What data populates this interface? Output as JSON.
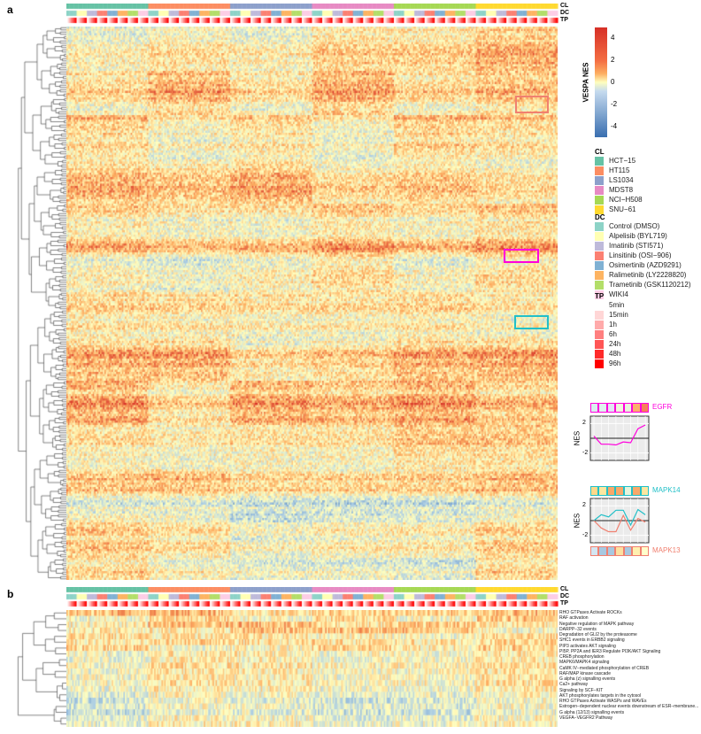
{
  "panels": {
    "a": "a",
    "b": "b"
  },
  "annotation_labels": {
    "cl": "CL",
    "dc": "DC",
    "tp": "TP"
  },
  "chart_data": {
    "type": "heatmap",
    "colorbar": {
      "title": "VESPA NES",
      "ticks": [
        4,
        2,
        0,
        -2,
        -4
      ],
      "range": [
        -5,
        5
      ],
      "colors": [
        "#3a6fb0",
        "#ffffbf",
        "#d73027"
      ]
    },
    "legends": {
      "CL": {
        "title": "CL",
        "items": [
          {
            "label": "HCT−15",
            "color": "#66c2a5"
          },
          {
            "label": "HT115",
            "color": "#fc8d62"
          },
          {
            "label": "LS1034",
            "color": "#8da0cb"
          },
          {
            "label": "MDST8",
            "color": "#e78ac3"
          },
          {
            "label": "NCI−H508",
            "color": "#a6d854"
          },
          {
            "label": "SNU−61",
            "color": "#ffd92f"
          }
        ]
      },
      "DC": {
        "title": "DC",
        "items": [
          {
            "label": "Control (DMSO)",
            "color": "#8dd3c7"
          },
          {
            "label": "Alpelisib (BYL719)",
            "color": "#ffffb3"
          },
          {
            "label": "Imatinib (STI571)",
            "color": "#bebada"
          },
          {
            "label": "Linsitinib (OSI−906)",
            "color": "#fb8072"
          },
          {
            "label": "Osimertinib (AZD9291)",
            "color": "#80b1d3"
          },
          {
            "label": "Ralimetinib (LY2228820)",
            "color": "#fdb462"
          },
          {
            "label": "Trametinib (GSK1120212)",
            "color": "#b3de69"
          },
          {
            "label": "WIKI4",
            "color": "#fccde5"
          }
        ]
      },
      "TP": {
        "title": "TP",
        "items": [
          {
            "label": "5min",
            "color": "#ffffff"
          },
          {
            "label": "15min",
            "color": "#ffd6d6"
          },
          {
            "label": "1h",
            "color": "#ffaaaa"
          },
          {
            "label": "6h",
            "color": "#ff7f7f"
          },
          {
            "label": "24h",
            "color": "#ff5555"
          },
          {
            "label": "48h",
            "color": "#ff2a2a"
          },
          {
            "label": "96h",
            "color": "#ff0000"
          }
        ]
      }
    },
    "highlight_colors": {
      "egfr": "#ff00dd",
      "mapk14": "#22c0c8",
      "mapk13": "#f08070"
    },
    "line_plots": [
      {
        "ylabel": "NES",
        "yticks": [
          2,
          -2
        ],
        "ylim": [
          -3,
          3
        ],
        "series": [
          {
            "name": "EGFR",
            "color": "#ff00dd",
            "values": [
              0.3,
              -0.8,
              -0.8,
              -0.9,
              -0.5,
              -0.6,
              1.3,
              1.8
            ]
          }
        ],
        "tiles": [
          "#d9f0f0",
          "#dff2ee",
          "#e3e3f3",
          "#eef6dc",
          "#e8f4dc",
          "#fcae6c",
          "#f6805a"
        ]
      },
      {
        "ylabel": "NES",
        "yticks": [
          2,
          -2
        ],
        "ylim": [
          -3,
          3
        ],
        "series": [
          {
            "name": "MAPK14",
            "color": "#22c0c8",
            "values": [
              0,
              0.8,
              0.5,
              1.4,
              1.4,
              -0.6,
              1.5,
              0.8
            ]
          },
          {
            "name": "MAPK13",
            "color": "#f08070",
            "values": [
              0,
              -1,
              -1.5,
              -1.5,
              0.7,
              -1.3,
              0.3,
              -0.2
            ]
          }
        ],
        "tiles_top": [
          "#fdd98a",
          "#fde7a0",
          "#f8a86a",
          "#f8a86a",
          "#e6f4dc",
          "#f8a86a",
          "#fde7a0"
        ],
        "tiles_bottom": [
          "#d4e6f2",
          "#a8c8e0",
          "#a8c8e0",
          "#fde0a0",
          "#a8c8e0",
          "#fff0b0",
          "#ffffcc"
        ]
      }
    ],
    "panel_b_rows": [
      "RHO GTPases Activate ROCKs",
      "RAF activation",
      "Negative regulation of MAPK pathway",
      "DARPP−32 events",
      "Degradation of GLI2 by the proteasome",
      "SHC1 events in ERBB2 signaling",
      "PIP3 activates AKT signaling",
      "PI5P, PP2A and IER3 Regulate PI3K/AKT Signaling",
      "CREB phosphorylation",
      "MAPK6/MAPK4 signaling",
      "CaMK IV−mediated phosphorylation of CREB",
      "RAF/MAP kinase cascade",
      "G alpha (z) signalling events",
      "Ca2+ pathway",
      "Signaling by SCF−KIT",
      "AKT phosphorylates targets in the cytosol",
      "RHO GTPases Activate WASPs and WAVEs",
      "Estrogen−dependent nuclear events downstream of ESR−membrane...",
      "G alpha (12/13) signalling events",
      "VEGFA−VEGFR2 Pathway"
    ]
  }
}
